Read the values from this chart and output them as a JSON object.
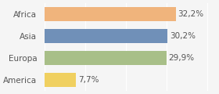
{
  "categories": [
    "America",
    "Europa",
    "Asia",
    "Africa"
  ],
  "values": [
    7.7,
    29.9,
    30.2,
    32.2
  ],
  "labels": [
    "7,7%",
    "29,9%",
    "30,2%",
    "32,2%"
  ],
  "bar_colors": [
    "#f0d060",
    "#a8bf88",
    "#7090b8",
    "#f0b47c"
  ],
  "background_color": "#f5f5f5",
  "xlim": [
    0,
    42
  ],
  "bar_height": 0.65,
  "label_fontsize": 7.5,
  "tick_fontsize": 7.5
}
